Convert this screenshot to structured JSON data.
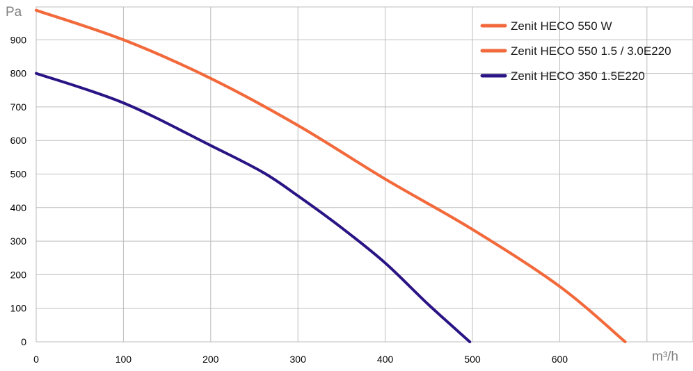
{
  "chart_data": {
    "type": "line",
    "title": "",
    "xlabel": "m³/h",
    "ylabel": "Pa",
    "xlim": [
      0,
      750
    ],
    "ylim": [
      0,
      1000
    ],
    "x_ticks": [
      "0",
      "100",
      "200",
      "300",
      "400",
      "500",
      "600"
    ],
    "y_ticks": [
      "0",
      "100",
      "200",
      "300",
      "400",
      "500",
      "600",
      "700",
      "800",
      "900"
    ],
    "grid": true,
    "legend_position": "top-right",
    "series": [
      {
        "name": "Zenit HECO 550 W",
        "color": "#f26a3c",
        "x": [
          0,
          100,
          200,
          300,
          400,
          500,
          600,
          675
        ],
        "y": [
          988,
          900,
          785,
          645,
          485,
          335,
          165,
          0
        ]
      },
      {
        "name": "Zenit HECO 550 1.5 / 3.0E220",
        "color": "#f26a3c",
        "x": [
          0,
          100,
          200,
          300,
          400,
          500,
          600,
          675
        ],
        "y": [
          988,
          900,
          785,
          645,
          485,
          335,
          165,
          0
        ]
      },
      {
        "name": "Zenit HECO 350 1.5E220",
        "color": "#2a1485",
        "x": [
          0,
          100,
          200,
          260,
          300,
          350,
          400,
          450,
          497
        ],
        "y": [
          800,
          712,
          585,
          505,
          435,
          340,
          235,
          110,
          0
        ]
      }
    ]
  }
}
